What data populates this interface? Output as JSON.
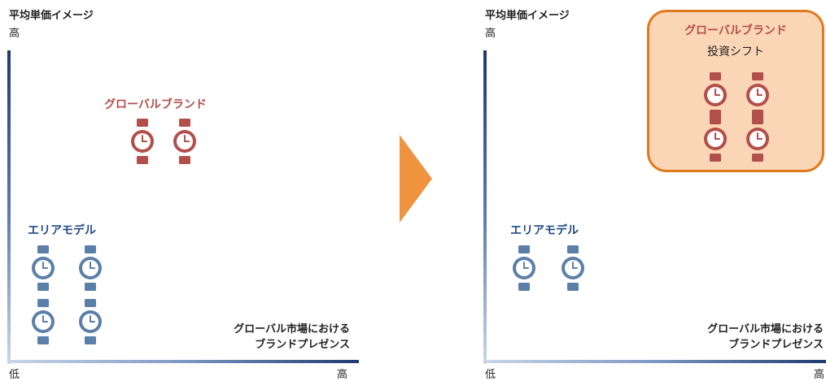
{
  "axes": {
    "y_title": "平均単価イメージ",
    "y_high": "高",
    "x_title_line1": "グローバル市場における",
    "x_title_line2": "ブランドプレゼンス",
    "x_low": "低",
    "x_high": "高"
  },
  "left_panel": {
    "global_label": "グローバルブランド",
    "area_label": "エリアモデル",
    "global_watch_count": 2,
    "area_watch_count": 4
  },
  "right_panel": {
    "global_label": "グローバルブランド",
    "global_sub": "投資シフト",
    "area_label": "エリアモデル",
    "global_watch_count": 4,
    "area_watch_count": 2
  },
  "colors": {
    "global": "#b24f4b",
    "area": "#5b7fa8",
    "arrow": "#f0933e",
    "highlight_fill": "#fbd6b6",
    "highlight_border": "#e07a1f"
  },
  "icons": {
    "watch": "wristwatch-icon",
    "transition": "arrow-right-icon"
  }
}
